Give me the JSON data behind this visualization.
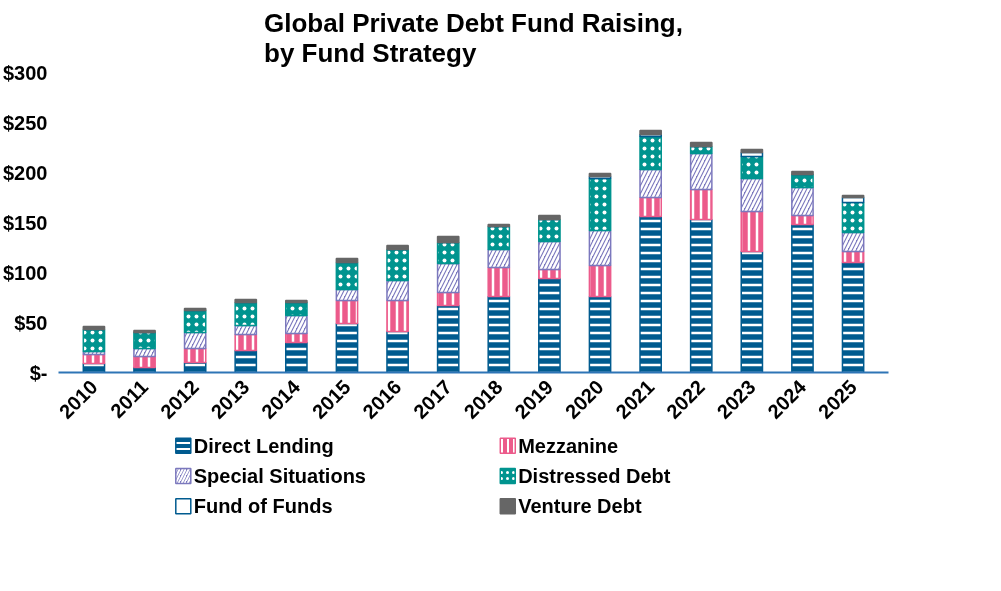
{
  "chart_data": {
    "type": "bar",
    "stacked": true,
    "title": "Global Private Debt Fund Raising,\nby Fund Strategy",
    "categories": [
      "2010",
      "2011",
      "2012",
      "2013",
      "2014",
      "2015",
      "2016",
      "2017",
      "2018",
      "2019",
      "2020",
      "2021",
      "2022",
      "2023",
      "2024",
      "2025"
    ],
    "series": [
      {
        "name": "Direct Lending",
        "color": "#005b8f",
        "values": [
          9,
          5,
          10,
          22,
          30,
          49,
          41,
          67,
          76,
          94,
          76,
          156,
          153,
          121,
          148,
          110
        ]
      },
      {
        "name": "Mezzanine",
        "color": "#ec5b8b",
        "values": [
          9,
          11,
          14,
          16,
          9,
          23,
          31,
          13,
          29,
          9,
          31,
          19,
          30,
          40,
          9,
          11
        ]
      },
      {
        "name": "Special Situations",
        "color": "#7b78bd",
        "values": [
          3,
          8,
          16,
          9,
          18,
          11,
          20,
          29,
          18,
          28,
          35,
          28,
          36,
          33,
          28,
          19
        ]
      },
      {
        "name": "Distressed Debt",
        "color": "#00948f",
        "values": [
          22,
          16,
          22,
          23,
          13,
          27,
          31,
          21,
          23,
          22,
          52,
          33,
          7,
          22,
          13,
          30
        ]
      },
      {
        "name": "Fund of Funds",
        "color": "#005b8f",
        "values": [
          0,
          0,
          0,
          0,
          0,
          0,
          0,
          0,
          0,
          0,
          2,
          2,
          0,
          4,
          0,
          5
        ]
      },
      {
        "name": "Venture Debt",
        "color": "#666666",
        "values": [
          3,
          2,
          2,
          3,
          2,
          4,
          4,
          6,
          2,
          4,
          3,
          4,
          4,
          3,
          3,
          2
        ]
      }
    ],
    "ylim": [
      0,
      300
    ],
    "yticks": [
      {
        "value": 0,
        "label": "$-"
      },
      {
        "value": 50,
        "label": "$50"
      },
      {
        "value": 100,
        "label": "$100"
      },
      {
        "value": 150,
        "label": "$150"
      },
      {
        "value": 200,
        "label": "$200"
      },
      {
        "value": 250,
        "label": "$250"
      },
      {
        "value": 300,
        "label": "$300"
      }
    ],
    "grid": false,
    "legend": "bottom"
  }
}
